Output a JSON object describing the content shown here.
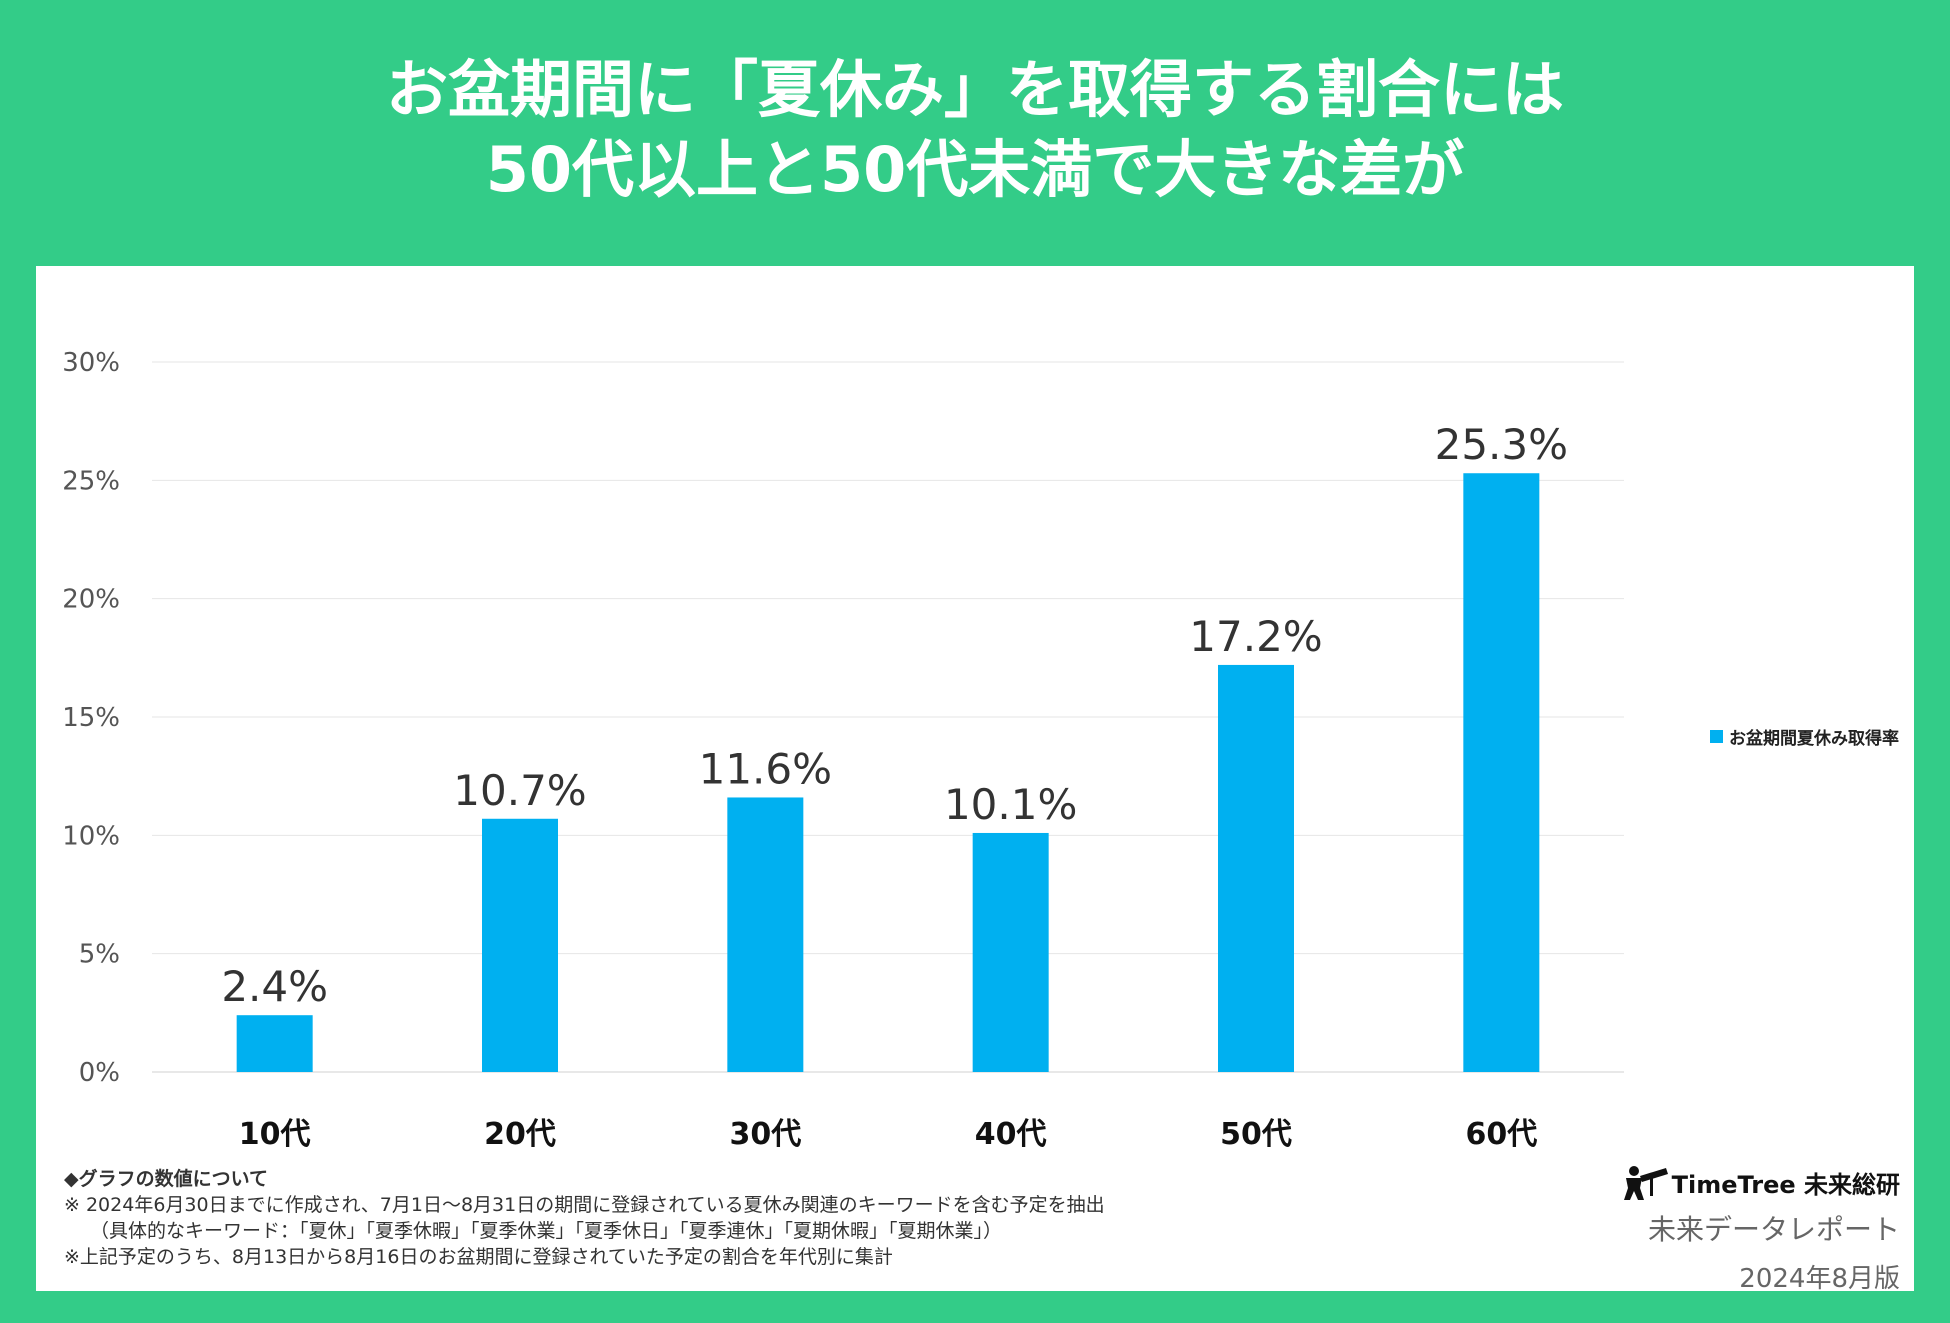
{
  "header": {
    "title_line1": "お盆期間に「夏休み」を取得する割合には",
    "title_line2": "50代以上と50代未満で大きな差が"
  },
  "colors": {
    "background": "#33cc88",
    "bar": "#00b0f0"
  },
  "chart_data": {
    "type": "bar",
    "categories": [
      "10代",
      "20代",
      "30代",
      "40代",
      "50代",
      "60代"
    ],
    "series": [
      {
        "name": "お盆期間夏休み取得率",
        "values": [
          2.4,
          10.7,
          11.6,
          10.1,
          17.2,
          25.3
        ]
      }
    ],
    "data_labels": [
      "2.4%",
      "10.7%",
      "11.6%",
      "10.1%",
      "17.2%",
      "25.3%"
    ],
    "y_ticks": [
      0,
      5,
      10,
      15,
      20,
      25,
      30
    ],
    "y_tick_labels": [
      "0%",
      "5%",
      "10%",
      "15%",
      "20%",
      "25%",
      "30%"
    ],
    "ylim": [
      0,
      30
    ],
    "grid": true,
    "legend_position": "right"
  },
  "notes": {
    "heading": "◆グラフの数値について",
    "line1": "※ 2024年6月30日までに作成され、7月1日〜8月31日の期間に登録されている夏休み関連のキーワードを含む予定を抽出",
    "line2": "（具体的なキーワード：「夏休」「夏季休暇」「夏季休業」「夏季休日」「夏季連休」「夏期休暇」「夏期休業」）",
    "line3": "※上記予定のうち、8月13日から8月16日のお盆期間に登録されていた予定の割合を年代別に集計"
  },
  "brand": {
    "logo_text": "TimeTree 未来総研",
    "subtitle": "未来データレポート",
    "date": "2024年8月版"
  }
}
